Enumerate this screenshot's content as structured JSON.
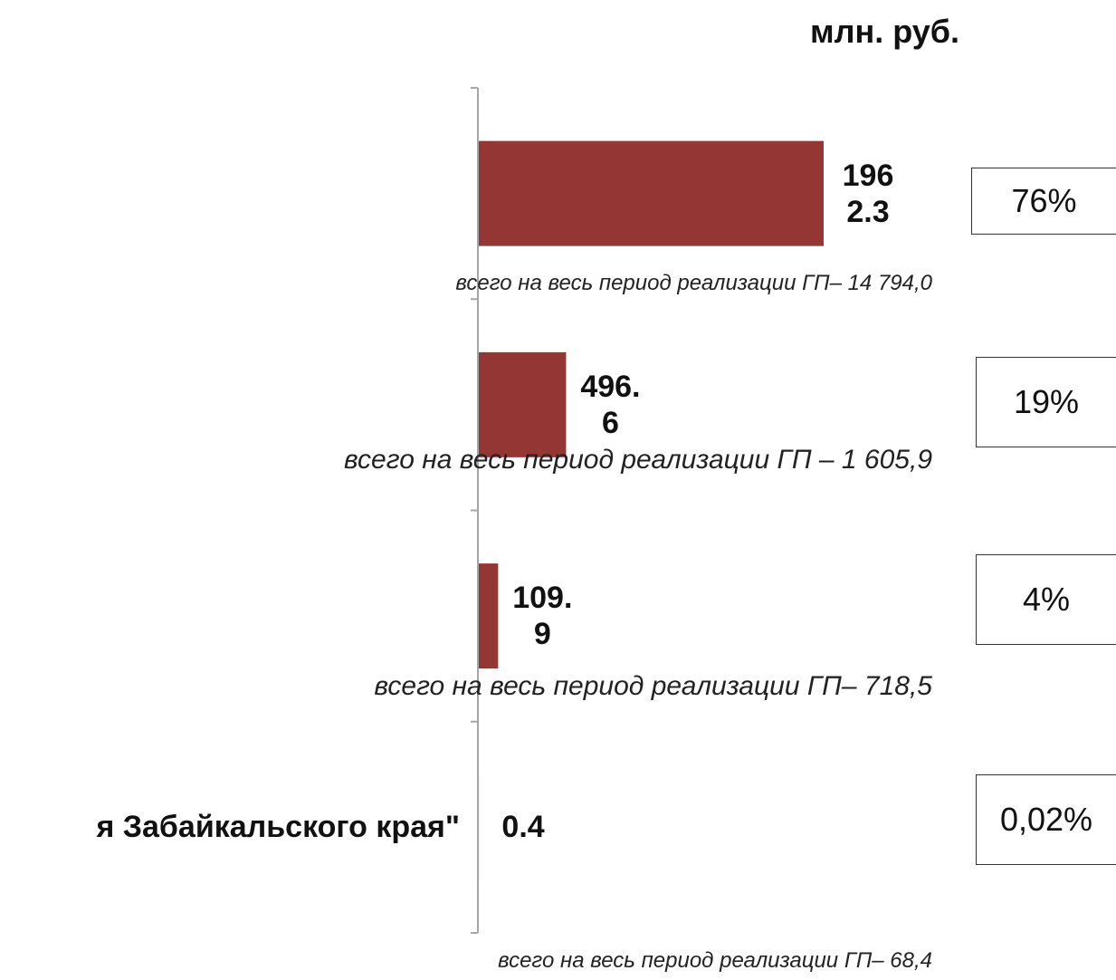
{
  "chart_data": {
    "type": "bar",
    "orientation": "horizontal",
    "unit_label": "млн. руб.",
    "categories": [
      null,
      null,
      null,
      "я Забайкальского края\""
    ],
    "values": [
      1962.3,
      496.6,
      109.9,
      0.4
    ],
    "color": "#943634",
    "annotations": [
      "всего на весь период реализации  ГП– 14 794,0",
      "всего на весь период реализации ГП – 1 605,9",
      "всего на весь период реализации ГП– 718,5",
      "всего на весь период реализации  ГП– 68,4"
    ],
    "shares": {
      "values": [
        76,
        19,
        4,
        0.02
      ],
      "value_labels": [
        "76%",
        "19%",
        "4%",
        "0,02%"
      ]
    }
  }
}
